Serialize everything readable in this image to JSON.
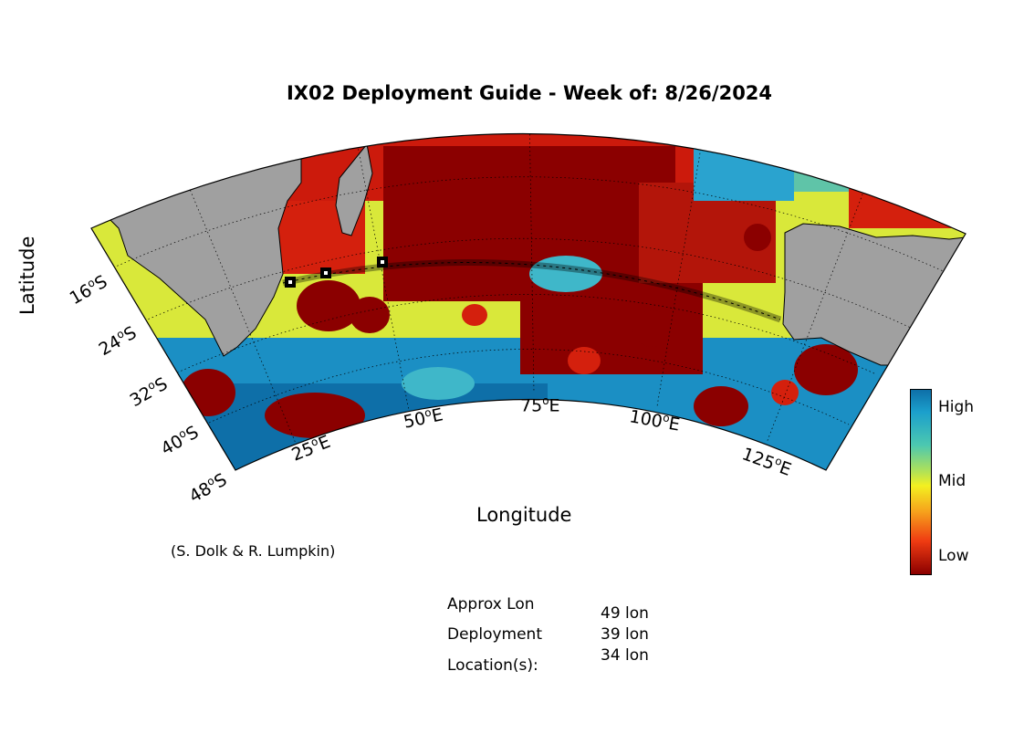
{
  "title": "IX02 Deployment Guide - Week of: 8/26/2024",
  "axes": {
    "xlabel": "Longitude",
    "ylabel": "Latitude",
    "lon_ticks": [
      "25",
      "50",
      "75",
      "100",
      "125"
    ],
    "lon_suffix": "E",
    "lat_ticks": [
      "16",
      "24",
      "32",
      "40",
      "48"
    ],
    "lat_suffix": "S",
    "degree_mark": "o"
  },
  "credit": "(S. Dolk & R. Lumpkin)",
  "deployment": {
    "label_line1": "Approx Lon",
    "label_line2": "Deployment",
    "label_line3": "Location(s):",
    "locations": [
      "49 lon",
      "39 lon",
      "34 lon"
    ]
  },
  "colorbar": {
    "high": "High",
    "mid": "Mid",
    "low": "Low"
  },
  "colors": {
    "land": "#a0a0a0",
    "high": "#0e6fa8",
    "mid": "#f3f020",
    "low": "#8b0000"
  }
}
